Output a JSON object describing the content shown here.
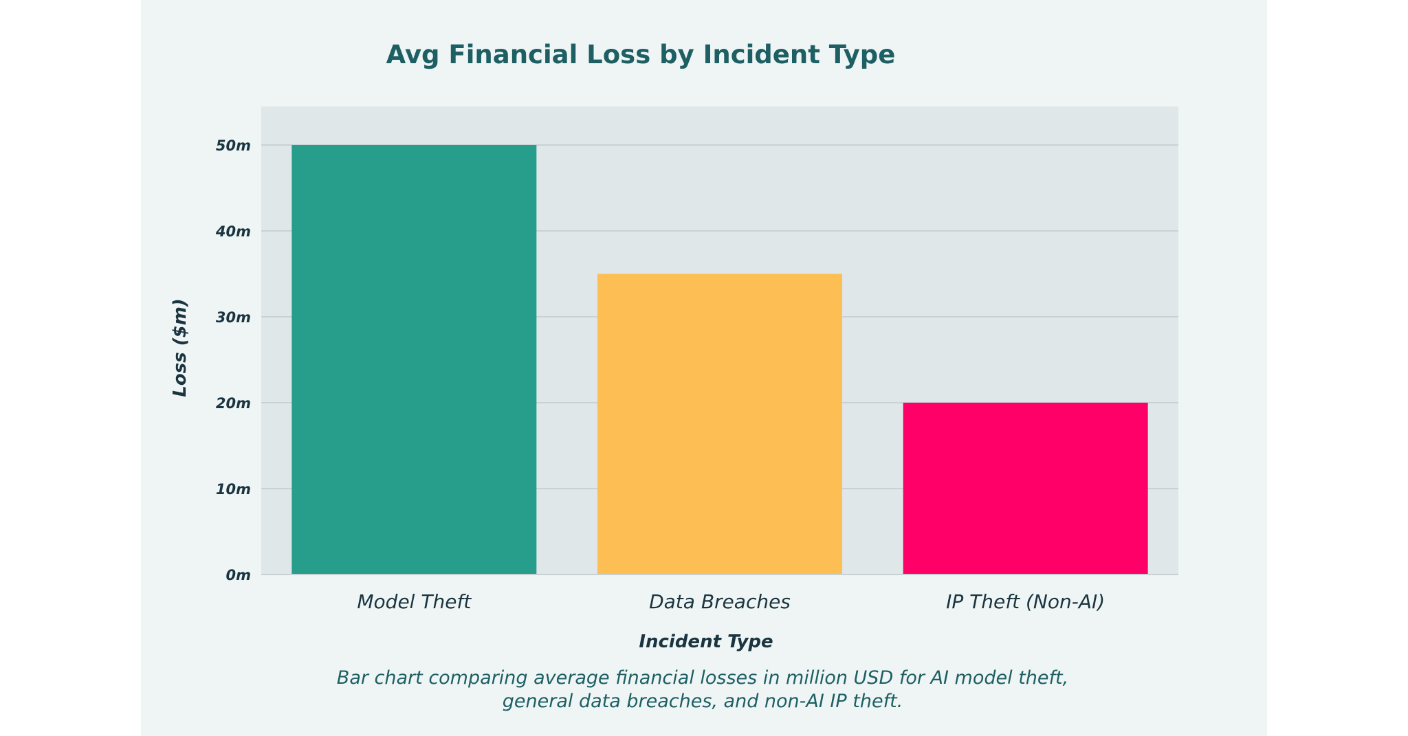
{
  "chart_data": {
    "type": "bar",
    "title": "Avg Financial Loss by Incident Type",
    "categories": [
      "Model Theft",
      "Data Breaches",
      "IP Theft (Non-AI)"
    ],
    "values": [
      50,
      35,
      20
    ],
    "colors": [
      "#279d8c",
      "#fdbf53",
      "#ff0068"
    ],
    "xlabel": "Incident Type",
    "ylabel": "Loss ($m)",
    "ylim": [
      0,
      55
    ],
    "yticks": [
      0,
      10,
      20,
      30,
      40,
      50
    ],
    "ytick_labels": [
      "0m",
      "10m",
      "20m",
      "30m",
      "40m",
      "50m"
    ],
    "grid": true,
    "plot_background": "#dfe7e9",
    "caption_lines": [
      "Bar chart comparing average financial losses in million USD for AI model theft,",
      "general data breaches, and non-AI IP theft."
    ]
  }
}
